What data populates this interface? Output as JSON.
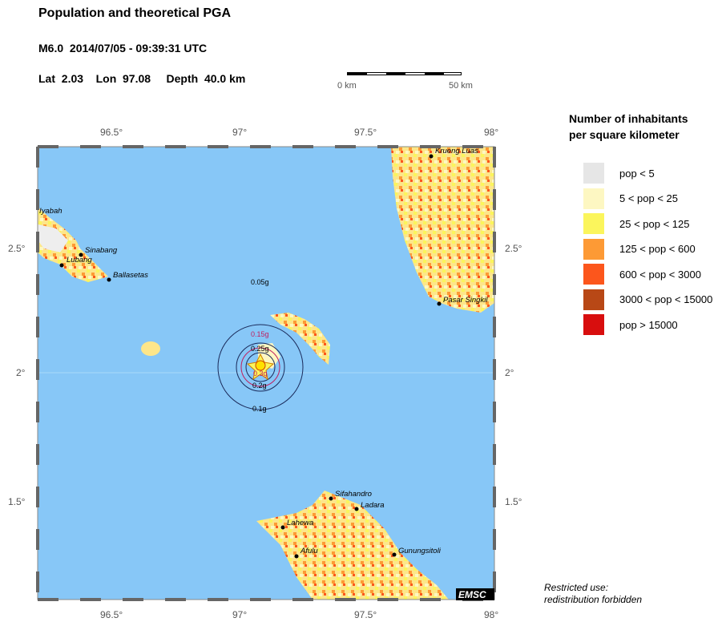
{
  "header": {
    "title": "Population and theoretical PGA",
    "event": "M6.0  2014/07/05 - 09:39:31 UTC",
    "location": "Lat  2.03    Lon  97.08     Depth  40.0 km"
  },
  "scale_bar": {
    "start_label": "0 km",
    "end_label": "50 km"
  },
  "map": {
    "lon_ticks": [
      "96.5°",
      "97°",
      "97.5°",
      "98°"
    ],
    "lat_ticks": [
      "2.5°",
      "2°",
      "1.5°"
    ],
    "colors": {
      "sea": "#87c7f7",
      "land_base": "#fdf3b4"
    },
    "epicenter": {
      "lat": 2.03,
      "lon": 97.08
    },
    "pga_labels": [
      "0.05g",
      "0.15g",
      "0.25g",
      "0.3g",
      "0.2g",
      "0.1g"
    ],
    "cities": [
      "Iyabah",
      "Sinabang",
      "Lubang",
      "Ballasetas",
      "Krueng Luas",
      "Pasar Singkil",
      "Sifahandro",
      "Ladara",
      "Lahewa",
      "Afulu",
      "Gunungsitoli"
    ],
    "logo": "EMSC"
  },
  "legend": {
    "title_line1": "Number of inhabitants",
    "title_line2": "per square kilometer",
    "items": [
      {
        "label": "pop < 5",
        "color": "#e6e6e6"
      },
      {
        "label": "5 < pop < 25",
        "color": "#fdf7c2"
      },
      {
        "label": "25 < pop < 125",
        "color": "#fbf55c"
      },
      {
        "label": "125 < pop < 600",
        "color": "#fd9a35"
      },
      {
        "label": "600 < pop < 3000",
        "color": "#fc561c"
      },
      {
        "label": "3000 < pop < 15000",
        "color": "#b84816"
      },
      {
        "label": "pop > 15000",
        "color": "#d80e0e"
      }
    ]
  },
  "note": {
    "line1": "Restricted use:",
    "line2": "redistribution forbidden"
  }
}
